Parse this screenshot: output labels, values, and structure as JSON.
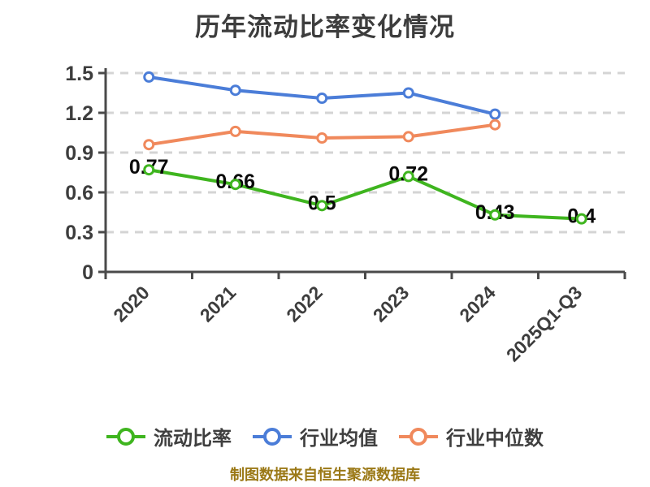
{
  "chart_data": {
    "type": "line",
    "title": "历年流动比率变化情况",
    "categories": [
      "2020",
      "2021",
      "2022",
      "2023",
      "2024",
      "2025Q1-Q3"
    ],
    "ylim": [
      0,
      1.5
    ],
    "yticks": [
      0,
      0.3,
      0.6,
      0.9,
      1.2,
      1.5
    ],
    "ytick_labels": [
      "0",
      "0.3",
      "0.6",
      "0.9",
      "1.2",
      "1.5"
    ],
    "grid": "horizontal-dashed",
    "legend_position": "bottom",
    "series": [
      {
        "key": "current-ratio",
        "name": "流动比率",
        "color": "#3fb51f",
        "values": [
          0.77,
          0.66,
          0.5,
          0.72,
          0.43,
          0.4
        ],
        "point_labels": [
          "0.77",
          "0.66",
          "0.5",
          "0.72",
          "0.43",
          "0.4"
        ]
      },
      {
        "key": "industry-mean",
        "name": "行业均值",
        "color": "#4b7dd8",
        "values": [
          1.47,
          1.37,
          1.31,
          1.35,
          1.19
        ],
        "point_labels": []
      },
      {
        "key": "industry-median",
        "name": "行业中位数",
        "color": "#f0895c",
        "values": [
          0.96,
          1.06,
          1.01,
          1.02,
          1.11
        ],
        "point_labels": []
      }
    ]
  },
  "footer": {
    "text": "制图数据来自恒生聚源数据库",
    "color": "#9b7917"
  },
  "colors": {
    "background": "#ffffff",
    "title": "#3d3d3d",
    "axis": "#4a4a4a",
    "grid": "#d4d4d4",
    "tick_label": "#3d3d3d",
    "value_label": "#0a0a0a"
  }
}
